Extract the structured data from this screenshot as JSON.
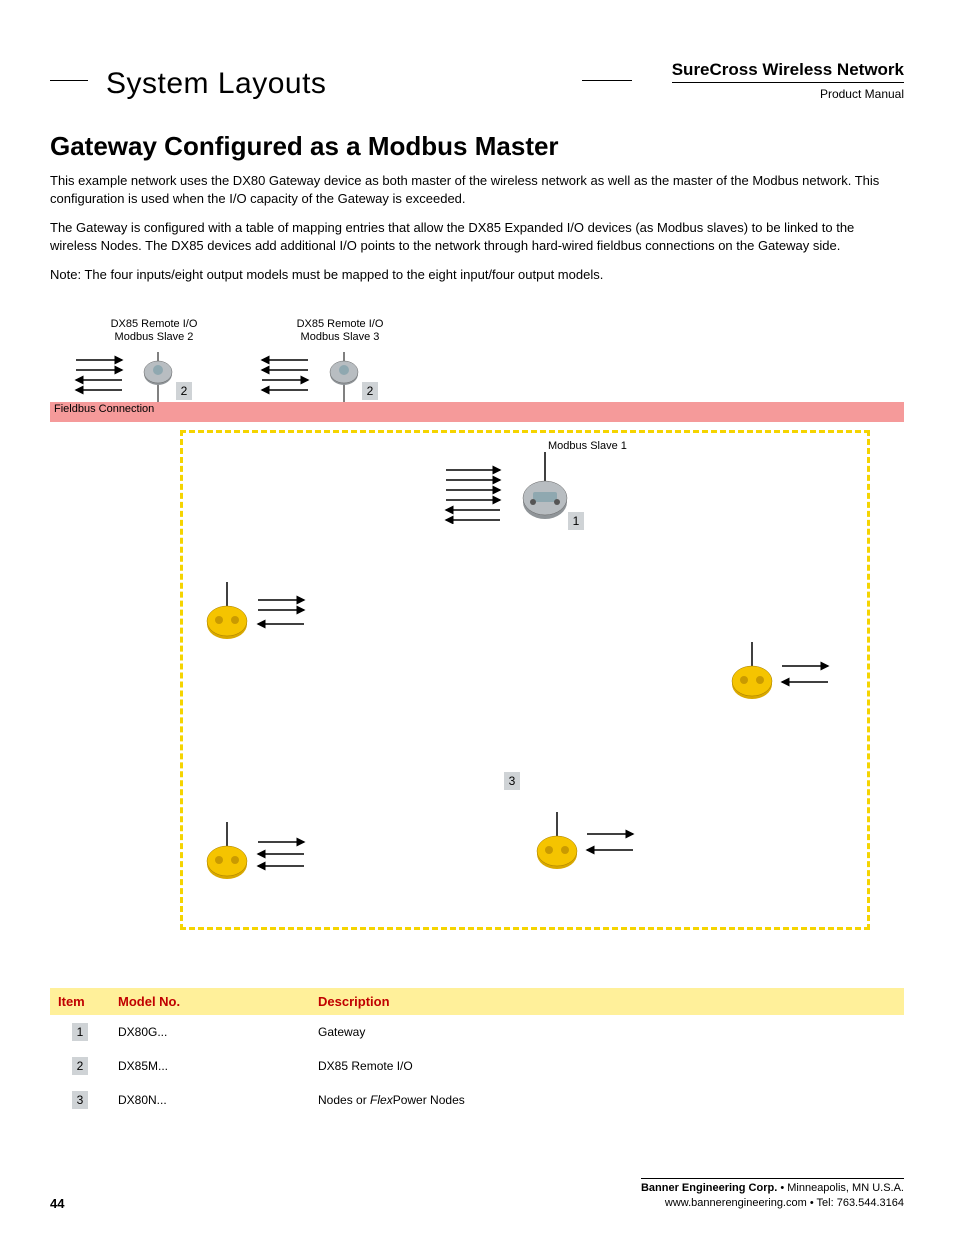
{
  "header": {
    "section_title": "System Layouts",
    "brand_line": "SureCross Wireless Network",
    "subtitle": "Product Manual"
  },
  "heading": "Gateway Configured as a Modbus Master",
  "paragraphs": [
    "This example network uses the DX80 Gateway device as both master of the wireless network as well as the master of the Modbus network. This configuration is used  when the I/O capacity of the Gateway is exceeded.",
    "The Gateway is configured with a table of mapping entries that allow the DX85 Expanded I/O devices (as Modbus slaves) to be linked to the wireless Nodes. The DX85 devices add additional I/O points to the network through hard-wired fieldbus connections on the Gateway side.",
    "Note: The four inputs/eight output models must be mapped to the eight input/four output models."
  ],
  "diagram": {
    "fieldbus_label": "Fieldbus Connection",
    "fieldbus_color": "#f59a9a",
    "dashed_color": "#f5d400",
    "labels": {
      "slave2": "DX85 Remote I/O\nModbus Slave 2",
      "slave3": "DX85 Remote I/O\nModbus Slave 3",
      "slave1": "Modbus Slave 1"
    },
    "badges": {
      "slave2": "2",
      "slave3": "2",
      "gateway": "1",
      "nodes": "3"
    },
    "device_colors": {
      "dx85_body": "#8f9498",
      "dx85_face": "#b8bdc1",
      "gateway_body": "#8f9498",
      "gateway_face": "#b8bdc1",
      "node_body": "#f5c400",
      "node_face": "#f7de6b",
      "antenna": "#000000"
    }
  },
  "table": {
    "header_bg": "#fff09a",
    "header_fg": "#c00000",
    "columns": [
      "Item",
      "Model No.",
      "Description"
    ],
    "rows": [
      {
        "num": "1",
        "model": "DX80G...",
        "desc_plain": "Gateway",
        "desc_italic": ""
      },
      {
        "num": "2",
        "model": "DX85M...",
        "desc_plain": "DX85 Remote I/O",
        "desc_italic": ""
      },
      {
        "num": "3",
        "model": "DX80N...",
        "desc_plain": "Nodes or ",
        "desc_italic": "Flex",
        "desc_after": "Power Nodes"
      }
    ]
  },
  "footer": {
    "page": "44",
    "corp_bold": "Banner Engineering Corp.",
    "corp_rest": " •  Minneapolis, MN U.S.A.",
    "line2": "www.bannerengineering.com  •  Tel: 763.544.3164"
  }
}
